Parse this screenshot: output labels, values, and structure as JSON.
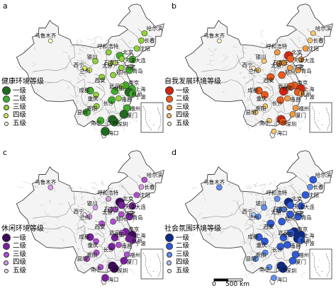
{
  "panels": [
    {
      "id": "a",
      "letter": "a",
      "legend_title": "健康环境等级",
      "classes": [
        {
          "label": "一级",
          "color": "#1f6b1f",
          "size": 12
        },
        {
          "label": "二级",
          "color": "#3fae2a",
          "size": 10
        },
        {
          "label": "三级",
          "color": "#8fd23a",
          "size": 8
        },
        {
          "label": "四级",
          "color": "#d5ec6a",
          "size": 7
        },
        {
          "label": "五级",
          "color": "#fbfbc8",
          "size": 6
        }
      ]
    },
    {
      "id": "b",
      "letter": "b",
      "legend_title": "自我发展环境等级",
      "classes": [
        {
          "label": "一级",
          "color": "#d4250f",
          "size": 12
        },
        {
          "label": "二级",
          "color": "#ee5a1c",
          "size": 10
        },
        {
          "label": "三级",
          "color": "#f39a3c",
          "size": 8
        },
        {
          "label": "四级",
          "color": "#f8c66a",
          "size": 7
        },
        {
          "label": "五级",
          "color": "#fdf1c4",
          "size": 6
        }
      ]
    },
    {
      "id": "c",
      "letter": "c",
      "legend_title": "休闲环境等级",
      "classes": [
        {
          "label": "一级",
          "color": "#3c0a5c",
          "size": 12
        },
        {
          "label": "二级",
          "color": "#7a1fa0",
          "size": 10
        },
        {
          "label": "三级",
          "color": "#b04fd0",
          "size": 8
        },
        {
          "label": "四级",
          "color": "#d99ae8",
          "size": 7
        },
        {
          "label": "五级",
          "color": "#f3dcf8",
          "size": 6
        }
      ]
    },
    {
      "id": "d",
      "letter": "d",
      "legend_title": "社会氛围环境等级",
      "classes": [
        {
          "label": "一级",
          "color": "#0c2a8c",
          "size": 12
        },
        {
          "label": "二级",
          "color": "#2e5bd9",
          "size": 10
        },
        {
          "label": "三级",
          "color": "#5f8ff0",
          "size": 8
        },
        {
          "label": "四级",
          "color": "#a9c6f7",
          "size": 7
        },
        {
          "label": "五级",
          "color": "#e8f0fd",
          "size": 6
        }
      ]
    }
  ],
  "cities": [
    {
      "name": "乌鲁木齐",
      "lon": 87.6,
      "lat": 43.8,
      "grades": [
        5,
        5,
        4,
        3
      ]
    },
    {
      "name": "哈尔滨",
      "lon": 126.6,
      "lat": 45.8,
      "grades": [
        3,
        4,
        3,
        2
      ]
    },
    {
      "name": "长春",
      "lon": 125.3,
      "lat": 43.9,
      "grades": [
        3,
        4,
        4,
        3
      ]
    },
    {
      "name": "沈阳",
      "lon": 123.4,
      "lat": 41.8,
      "grades": [
        3,
        3,
        3,
        2
      ]
    },
    {
      "name": "呼和浩特",
      "lon": 111.7,
      "lat": 40.8,
      "grades": [
        3,
        3,
        4,
        3
      ]
    },
    {
      "name": "北京",
      "lon": 116.4,
      "lat": 39.9,
      "grades": [
        2,
        1,
        1,
        1
      ]
    },
    {
      "name": "天津",
      "lon": 117.2,
      "lat": 39.1,
      "grades": [
        3,
        2,
        2,
        2
      ]
    },
    {
      "name": "大连",
      "lon": 121.6,
      "lat": 38.9,
      "grades": [
        2,
        3,
        2,
        2
      ]
    },
    {
      "name": "石家庄",
      "lon": 114.5,
      "lat": 38.0,
      "grades": [
        4,
        3,
        3,
        3
      ]
    },
    {
      "name": "太原",
      "lon": 112.5,
      "lat": 37.9,
      "grades": [
        4,
        3,
        4,
        3
      ]
    },
    {
      "name": "济南",
      "lon": 117.0,
      "lat": 36.7,
      "grades": [
        3,
        3,
        3,
        2
      ]
    },
    {
      "name": "青岛",
      "lon": 120.4,
      "lat": 36.1,
      "grades": [
        2,
        3,
        2,
        2
      ]
    },
    {
      "name": "银川",
      "lon": 106.2,
      "lat": 38.5,
      "grades": [
        3,
        4,
        4,
        3
      ]
    },
    {
      "name": "兰州",
      "lon": 103.8,
      "lat": 36.1,
      "grades": [
        4,
        4,
        4,
        3
      ]
    },
    {
      "name": "西宁",
      "lon": 101.8,
      "lat": 36.6,
      "grades": [
        4,
        5,
        5,
        4
      ]
    },
    {
      "name": "西安",
      "lon": 108.9,
      "lat": 34.3,
      "grades": [
        3,
        2,
        3,
        2
      ]
    },
    {
      "name": "郑州",
      "lon": 113.6,
      "lat": 34.8,
      "grades": [
        3,
        2,
        3,
        2
      ]
    },
    {
      "name": "南京",
      "lon": 118.8,
      "lat": 32.1,
      "grades": [
        2,
        2,
        2,
        1
      ]
    },
    {
      "name": "合肥",
      "lon": 117.3,
      "lat": 31.8,
      "grades": [
        3,
        2,
        3,
        2
      ]
    },
    {
      "name": "上海",
      "lon": 121.5,
      "lat": 31.2,
      "grades": [
        2,
        1,
        1,
        1
      ]
    },
    {
      "name": "杭州",
      "lon": 120.2,
      "lat": 30.3,
      "grades": [
        1,
        2,
        2,
        1
      ]
    },
    {
      "name": "宁波",
      "lon": 121.6,
      "lat": 29.9,
      "grades": [
        2,
        3,
        2,
        2
      ]
    },
    {
      "name": "成都",
      "lon": 104.1,
      "lat": 30.7,
      "grades": [
        2,
        2,
        2,
        2
      ]
    },
    {
      "name": "重庆",
      "lon": 106.5,
      "lat": 29.6,
      "grades": [
        3,
        2,
        3,
        2
      ]
    },
    {
      "name": "武汉",
      "lon": 114.3,
      "lat": 30.6,
      "grades": [
        2,
        1,
        2,
        2
      ]
    },
    {
      "name": "长沙",
      "lon": 113.0,
      "lat": 28.2,
      "grades": [
        2,
        2,
        2,
        2
      ]
    },
    {
      "name": "南昌",
      "lon": 115.9,
      "lat": 28.7,
      "grades": [
        3,
        3,
        3,
        2
      ]
    },
    {
      "name": "福州",
      "lon": 119.3,
      "lat": 26.1,
      "grades": [
        2,
        3,
        3,
        2
      ]
    },
    {
      "name": "厦门",
      "lon": 118.1,
      "lat": 24.5,
      "grades": [
        1,
        3,
        2,
        2
      ]
    },
    {
      "name": "贵阳",
      "lon": 106.7,
      "lat": 26.6,
      "grades": [
        3,
        4,
        3,
        3
      ]
    },
    {
      "name": "昆明",
      "lon": 102.7,
      "lat": 25.0,
      "grades": [
        2,
        4,
        3,
        3
      ]
    },
    {
      "name": "南宁",
      "lon": 108.4,
      "lat": 22.8,
      "grades": [
        2,
        4,
        3,
        3
      ]
    },
    {
      "name": "广州",
      "lon": 113.3,
      "lat": 23.1,
      "grades": [
        1,
        1,
        1,
        1
      ]
    },
    {
      "name": "深圳",
      "lon": 114.1,
      "lat": 22.5,
      "grades": [
        1,
        2,
        1,
        1
      ]
    },
    {
      "name": "海口",
      "lon": 110.3,
      "lat": 20.0,
      "grades": [
        1,
        4,
        2,
        3
      ]
    }
  ],
  "scale_bar": {
    "zero": "0",
    "distance": "500 km"
  }
}
